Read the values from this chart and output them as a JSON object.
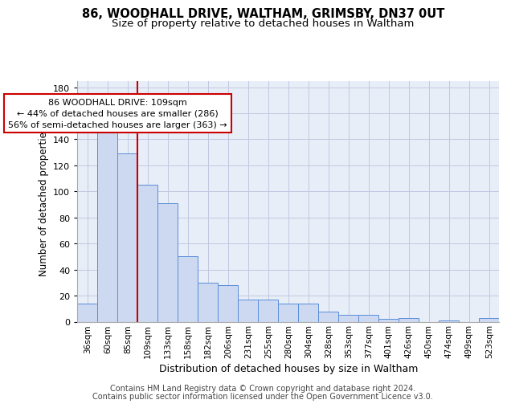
{
  "title1": "86, WOODHALL DRIVE, WALTHAM, GRIMSBY, DN37 0UT",
  "title2": "Size of property relative to detached houses in Waltham",
  "xlabel": "Distribution of detached houses by size in Waltham",
  "ylabel": "Number of detached properties",
  "bar_labels": [
    "36sqm",
    "60sqm",
    "85sqm",
    "109sqm",
    "133sqm",
    "158sqm",
    "182sqm",
    "206sqm",
    "231sqm",
    "255sqm",
    "280sqm",
    "304sqm",
    "328sqm",
    "353sqm",
    "377sqm",
    "401sqm",
    "426sqm",
    "450sqm",
    "474sqm",
    "499sqm",
    "523sqm"
  ],
  "bar_values": [
    14,
    150,
    129,
    105,
    91,
    50,
    30,
    28,
    17,
    17,
    14,
    14,
    8,
    5,
    5,
    2,
    3,
    0,
    1,
    0,
    3
  ],
  "bar_color": "#ccd9f0",
  "bar_edge_color": "#5b8dd9",
  "red_line_index": 3,
  "annotation_line1": "86 WOODHALL DRIVE: 109sqm",
  "annotation_line2": "← 44% of detached houses are smaller (286)",
  "annotation_line3": "56% of semi-detached houses are larger (363) →",
  "annotation_box_color": "#ffffff",
  "annotation_box_edge_color": "#cc0000",
  "ylim_max": 185,
  "yticks": [
    0,
    20,
    40,
    60,
    80,
    100,
    120,
    140,
    160,
    180
  ],
  "grid_color": "#c0c8e0",
  "bg_color": "#e8eef8",
  "footer_line1": "Contains HM Land Registry data © Crown copyright and database right 2024.",
  "footer_line2": "Contains public sector information licensed under the Open Government Licence v3.0."
}
